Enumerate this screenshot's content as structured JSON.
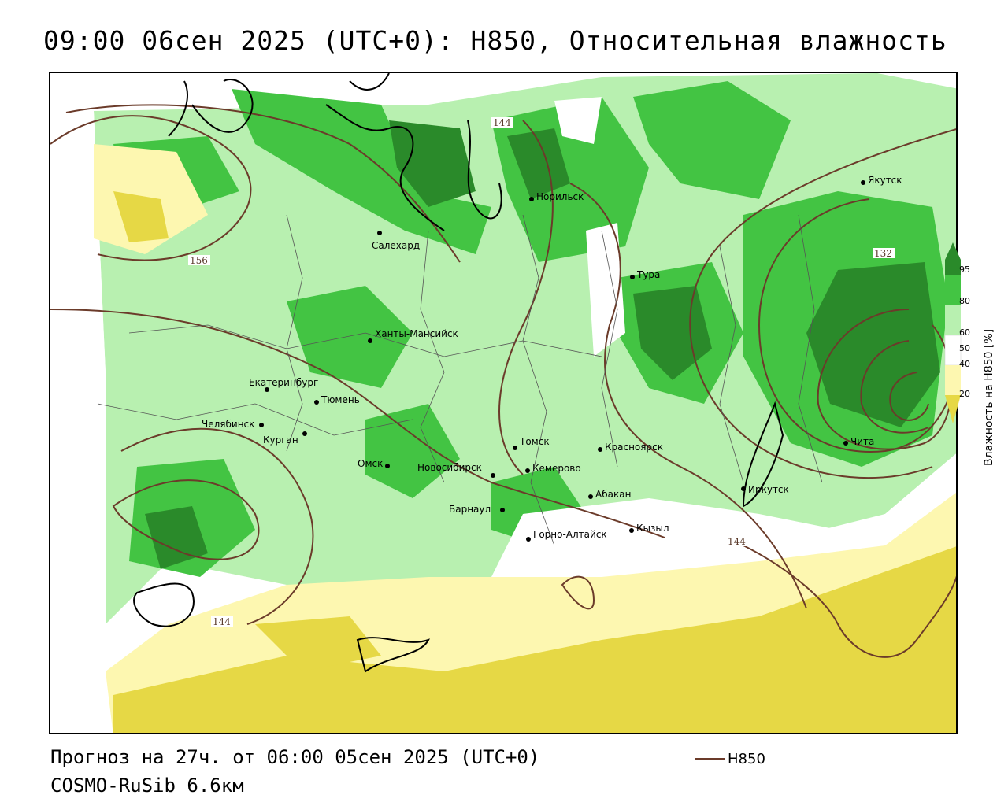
{
  "title": "09:00 06сен 2025 (UTC+0): H850, Относительная влажность",
  "footer": {
    "forecast": "Прогноз на 27ч. от 06:00 05сен 2025 (UTC+0)",
    "model": "COSMO-RuSib 6.6км",
    "contour_legend": "H850"
  },
  "colorbar": {
    "title": "Влажность на H850 [%]",
    "ticks": [
      "95",
      "80",
      "60",
      "50",
      "40",
      "20"
    ],
    "colors": {
      "c95": "#2a8a2a",
      "c80": "#43c443",
      "c60": "#b8f0b0",
      "c50": "#ffffff",
      "c40": "#fdf7b0",
      "c20": "#e6d845"
    }
  },
  "cities": [
    {
      "name": "Якутск"
    },
    {
      "name": "Норильск"
    },
    {
      "name": "Салехард"
    },
    {
      "name": "Тура"
    },
    {
      "name": "Ханты-Мансийск"
    },
    {
      "name": "Екатеринбург"
    },
    {
      "name": "Тюмень"
    },
    {
      "name": "Челябинск"
    },
    {
      "name": "Курган"
    },
    {
      "name": "Омск"
    },
    {
      "name": "Новосибирск"
    },
    {
      "name": "Томск"
    },
    {
      "name": "Кемерово"
    },
    {
      "name": "Красноярск"
    },
    {
      "name": "Абакан"
    },
    {
      "name": "Барнаул"
    },
    {
      "name": "Горно-Алтайск"
    },
    {
      "name": "Кызыл"
    },
    {
      "name": "Иркутск"
    },
    {
      "name": "Чита"
    }
  ],
  "contour_labels": [
    "144",
    "156",
    "132",
    "144",
    "144"
  ]
}
